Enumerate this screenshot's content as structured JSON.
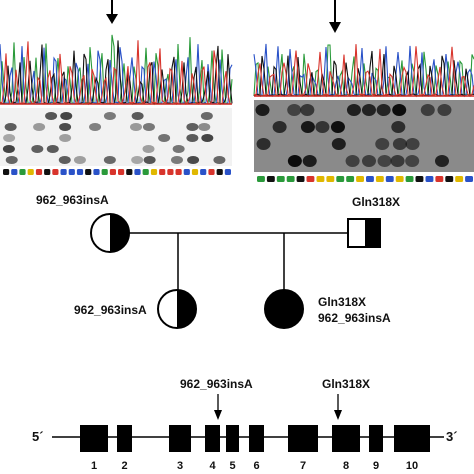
{
  "pedigree": {
    "mother_label": "962_963insA",
    "father_label": "Gln318X",
    "child1_label": "962_963insA",
    "child2_label_line1": "Gln318X",
    "child2_label_line2": "962_963insA"
  },
  "gene": {
    "five_prime": "5´",
    "three_prime": "3´",
    "mutation_left": "962_963insA",
    "mutation_right": "Gln318X",
    "exons": [
      "1",
      "2",
      "3",
      "4",
      "5",
      "6",
      "7",
      "8",
      "9",
      "10"
    ]
  },
  "colors": {
    "trace_a": "#2a9a3a",
    "trace_c": "#2a52c8",
    "trace_g": "#111111",
    "trace_t": "#d8342c",
    "trace_y": "#e0b800"
  }
}
